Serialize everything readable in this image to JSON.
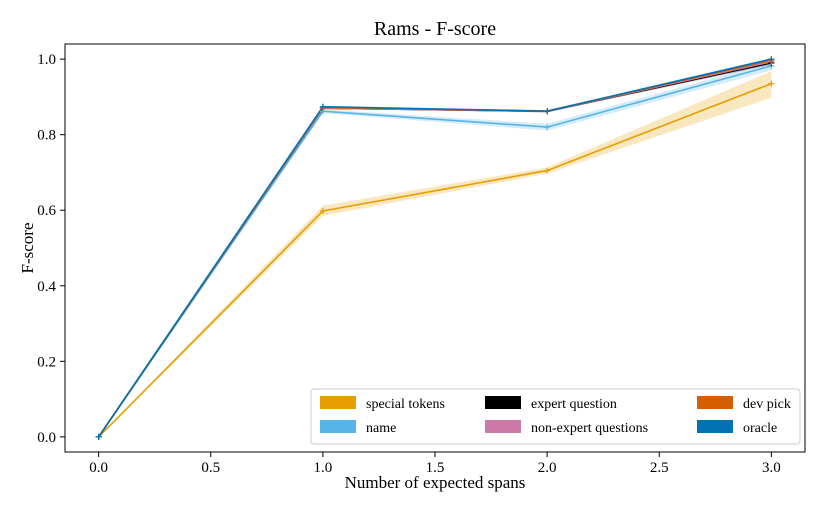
{
  "chart_data": {
    "type": "line",
    "title": "Rams - F-score",
    "xlabel": "Number of expected spans",
    "ylabel": "F-score",
    "xlim": [
      -0.15,
      3.15
    ],
    "ylim": [
      -0.04,
      1.04
    ],
    "xticks": [
      0.0,
      0.5,
      1.0,
      1.5,
      2.0,
      2.5,
      3.0
    ],
    "xtick_labels": [
      "0.0",
      "0.5",
      "1.0",
      "1.5",
      "2.0",
      "2.5",
      "3.0"
    ],
    "yticks": [
      0.0,
      0.2,
      0.4,
      0.6,
      0.8,
      1.0
    ],
    "ytick_labels": [
      "0.0",
      "0.2",
      "0.4",
      "0.6",
      "0.8",
      "1.0"
    ],
    "x": [
      0,
      1,
      2,
      3
    ],
    "legend_position": "lower-right",
    "series": [
      {
        "name": "special tokens",
        "color": "#E69F00",
        "values": [
          0.0,
          0.598,
          0.705,
          0.935
        ],
        "lower": [
          0.0,
          0.585,
          0.697,
          0.898
        ],
        "upper": [
          0.0,
          0.612,
          0.713,
          0.968
        ]
      },
      {
        "name": "name",
        "color": "#56B4E9",
        "values": [
          0.0,
          0.862,
          0.82,
          0.982
        ],
        "lower": [
          0.0,
          0.857,
          0.811,
          0.97
        ],
        "upper": [
          0.0,
          0.867,
          0.829,
          0.992
        ]
      },
      {
        "name": "expert question",
        "color": "#000000",
        "values": [
          0.0,
          0.87,
          0.862,
          0.99
        ],
        "lower": [
          0.0,
          0.868,
          0.859,
          0.985
        ],
        "upper": [
          0.0,
          0.872,
          0.865,
          0.995
        ]
      },
      {
        "name": "non-expert questions",
        "color": "#CC79A7",
        "values": [
          0.0,
          0.87,
          0.862,
          0.993
        ],
        "lower": [
          0.0,
          0.868,
          0.859,
          0.988
        ],
        "upper": [
          0.0,
          0.872,
          0.865,
          0.997
        ]
      },
      {
        "name": "dev pick",
        "color": "#D55E00",
        "values": [
          0.0,
          0.872,
          0.862,
          0.997
        ],
        "lower": [
          0.0,
          0.87,
          0.859,
          0.993
        ],
        "upper": [
          0.0,
          0.874,
          0.865,
          1.0
        ]
      },
      {
        "name": "oracle",
        "color": "#0072B2",
        "values": [
          0.0,
          0.874,
          0.862,
          1.0
        ],
        "lower": [
          0.0,
          0.872,
          0.859,
          0.996
        ],
        "upper": [
          0.0,
          0.876,
          0.865,
          1.003
        ]
      }
    ]
  }
}
